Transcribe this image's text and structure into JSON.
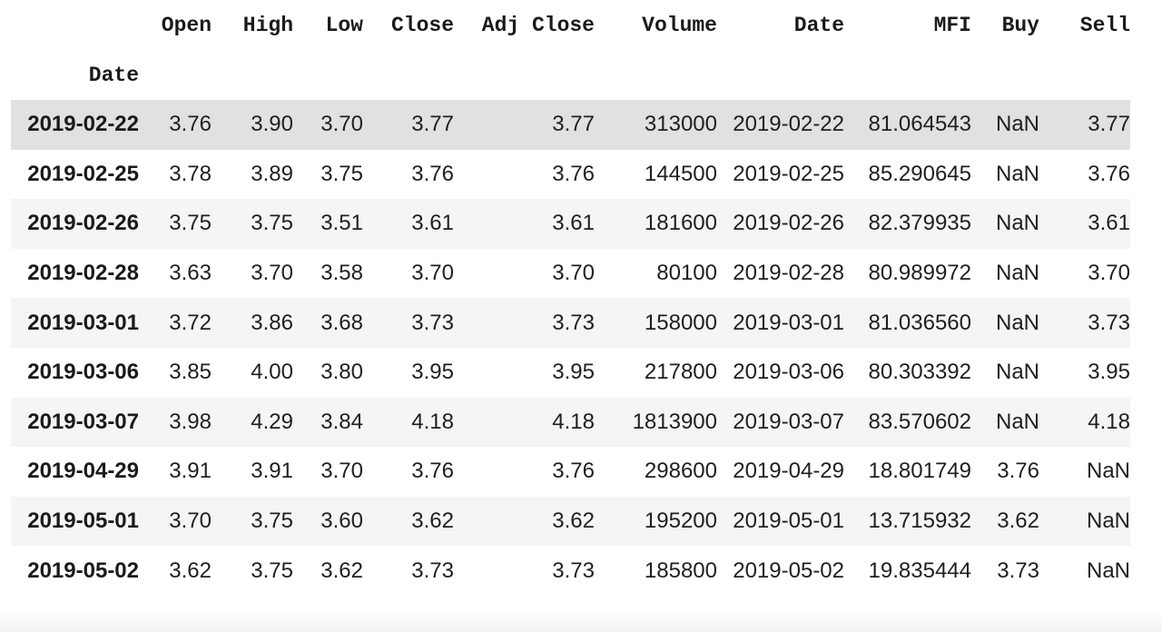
{
  "table": {
    "index_name": "Date",
    "columns": [
      "Open",
      "High",
      "Low",
      "Close",
      "Adj Close",
      "Volume",
      "Date",
      "MFI",
      "Buy",
      "Sell"
    ],
    "rows": [
      {
        "index": "2019-02-22",
        "cells": [
          "3.76",
          "3.90",
          "3.70",
          "3.77",
          "3.77",
          "313000",
          "2019-02-22",
          "81.064543",
          "NaN",
          "3.77"
        ],
        "highlighted": true
      },
      {
        "index": "2019-02-25",
        "cells": [
          "3.78",
          "3.89",
          "3.75",
          "3.76",
          "3.76",
          "144500",
          "2019-02-25",
          "85.290645",
          "NaN",
          "3.76"
        ],
        "highlighted": false
      },
      {
        "index": "2019-02-26",
        "cells": [
          "3.75",
          "3.75",
          "3.51",
          "3.61",
          "3.61",
          "181600",
          "2019-02-26",
          "82.379935",
          "NaN",
          "3.61"
        ],
        "highlighted": false
      },
      {
        "index": "2019-02-28",
        "cells": [
          "3.63",
          "3.70",
          "3.58",
          "3.70",
          "3.70",
          "80100",
          "2019-02-28",
          "80.989972",
          "NaN",
          "3.70"
        ],
        "highlighted": false
      },
      {
        "index": "2019-03-01",
        "cells": [
          "3.72",
          "3.86",
          "3.68",
          "3.73",
          "3.73",
          "158000",
          "2019-03-01",
          "81.036560",
          "NaN",
          "3.73"
        ],
        "highlighted": false
      },
      {
        "index": "2019-03-06",
        "cells": [
          "3.85",
          "4.00",
          "3.80",
          "3.95",
          "3.95",
          "217800",
          "2019-03-06",
          "80.303392",
          "NaN",
          "3.95"
        ],
        "highlighted": false
      },
      {
        "index": "2019-03-07",
        "cells": [
          "3.98",
          "4.29",
          "3.84",
          "4.18",
          "4.18",
          "1813900",
          "2019-03-07",
          "83.570602",
          "NaN",
          "4.18"
        ],
        "highlighted": false
      },
      {
        "index": "2019-04-29",
        "cells": [
          "3.91",
          "3.91",
          "3.70",
          "3.76",
          "3.76",
          "298600",
          "2019-04-29",
          "18.801749",
          "3.76",
          "NaN"
        ],
        "highlighted": false
      },
      {
        "index": "2019-05-01",
        "cells": [
          "3.70",
          "3.75",
          "3.60",
          "3.62",
          "3.62",
          "195200",
          "2019-05-01",
          "13.715932",
          "3.62",
          "NaN"
        ],
        "highlighted": false
      },
      {
        "index": "2019-05-02",
        "cells": [
          "3.62",
          "3.75",
          "3.62",
          "3.73",
          "3.73",
          "185800",
          "2019-05-02",
          "19.835444",
          "3.73",
          "NaN"
        ],
        "highlighted": false
      }
    ],
    "colors": {
      "highlighted_row_bg": "#e1e1e1",
      "stripe_row_bg": "#f5f5f5",
      "default_row_bg": "#ffffff",
      "header_text": "#1a1a1a",
      "cell_text": "#1f1f1f"
    }
  }
}
